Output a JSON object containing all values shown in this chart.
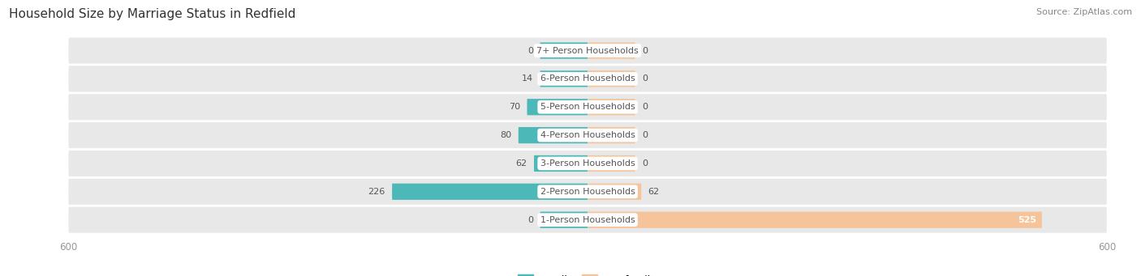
{
  "title": "Household Size by Marriage Status in Redfield",
  "source": "Source: ZipAtlas.com",
  "categories": [
    "7+ Person Households",
    "6-Person Households",
    "5-Person Households",
    "4-Person Households",
    "3-Person Households",
    "2-Person Households",
    "1-Person Households"
  ],
  "family_values": [
    0,
    14,
    70,
    80,
    62,
    226,
    0
  ],
  "nonfamily_values": [
    0,
    0,
    0,
    0,
    0,
    62,
    525
  ],
  "family_color": "#4db8b8",
  "nonfamily_color": "#f5c49a",
  "axis_limit": 600,
  "bar_row_bg": "#e8e8e8",
  "bar_height": 0.58,
  "min_bar_width": 55,
  "label_color": "#555555",
  "title_color": "#333333",
  "source_color": "#888888",
  "axis_label_color": "#999999"
}
